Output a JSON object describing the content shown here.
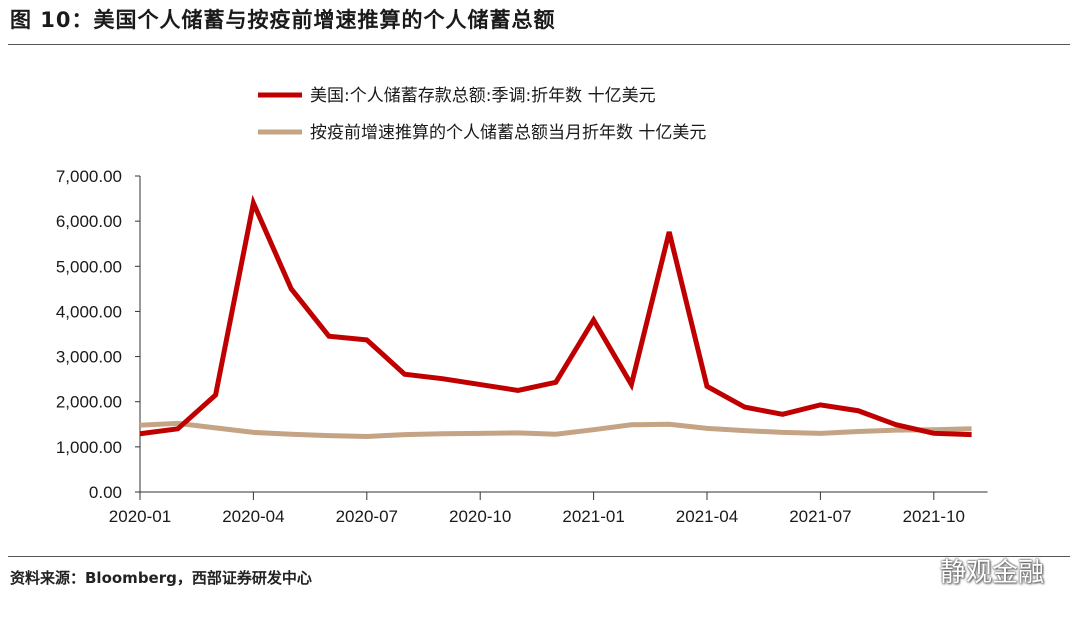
{
  "figure": {
    "title": "图 10：美国个人储蓄与按疫前增速推算的个人储蓄总额",
    "source": "资料来源：Bloomberg，西部证券研发中心",
    "watermark": "静观金融"
  },
  "chart_data": {
    "type": "line",
    "title": "",
    "xlabel": "",
    "ylabel": "",
    "ylim": [
      0,
      7000
    ],
    "yticks": [
      "0.00",
      "1,000.00",
      "2,000.00",
      "3,000.00",
      "4,000.00",
      "5,000.00",
      "6,000.00",
      "7,000.00"
    ],
    "x": [
      "2020-01",
      "2020-02",
      "2020-03",
      "2020-04",
      "2020-05",
      "2020-06",
      "2020-07",
      "2020-08",
      "2020-09",
      "2020-10",
      "2020-11",
      "2020-12",
      "2021-01",
      "2021-02",
      "2021-03",
      "2021-04",
      "2021-05",
      "2021-06",
      "2021-07",
      "2021-08",
      "2021-09",
      "2021-10",
      "2021-11"
    ],
    "xticks": [
      "2020-01",
      "2020-04",
      "2020-07",
      "2020-10",
      "2021-01",
      "2021-04",
      "2021-07",
      "2021-10"
    ],
    "grid": false,
    "legend_position": "top",
    "series": [
      {
        "name": "美国:个人储蓄存款总额:季调:折年数 十亿美元",
        "color": "#c00000",
        "values": [
          1290,
          1400,
          2150,
          6400,
          4500,
          3450,
          3370,
          2610,
          2510,
          2380,
          2250,
          2430,
          3810,
          2380,
          5760,
          2340,
          1880,
          1720,
          1930,
          1800,
          1490,
          1300,
          1270
        ]
      },
      {
        "name": "按疫前增速推算的个人储蓄总额当月折年数 十亿美元",
        "color": "#c4a484",
        "values": [
          1480,
          1520,
          1420,
          1320,
          1280,
          1250,
          1230,
          1270,
          1290,
          1300,
          1310,
          1280,
          1380,
          1490,
          1500,
          1410,
          1360,
          1320,
          1300,
          1340,
          1370,
          1380,
          1400
        ]
      }
    ]
  }
}
